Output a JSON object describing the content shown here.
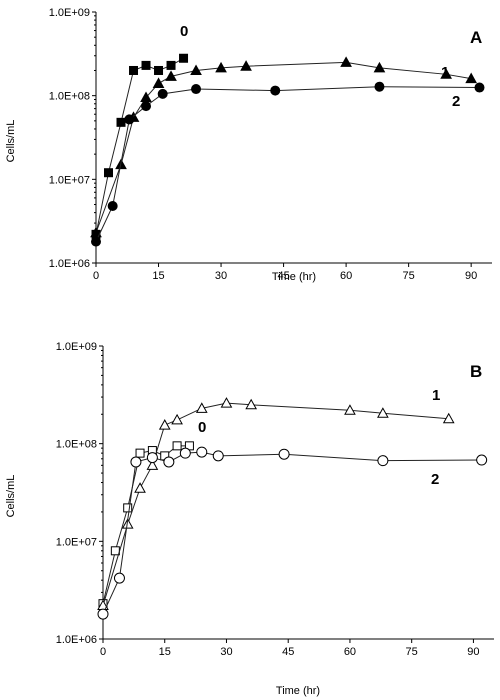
{
  "chart_data": [
    {
      "type": "line",
      "panel_label": "A",
      "xlabel": "Time (hr)",
      "ylabel": "Cells/mL",
      "y_scale": "log",
      "xlim": [
        0,
        95
      ],
      "ylim": [
        1000000,
        1000000000
      ],
      "x_ticks": [
        0,
        15,
        30,
        45,
        60,
        75,
        90
      ],
      "y_ticks": [
        1000000,
        10000000,
        100000000,
        1000000000
      ],
      "y_tick_labels": [
        "1.0E+06",
        "1.0E+07",
        "1.0E+08",
        "1.0E+09"
      ],
      "grid": false,
      "series": [
        {
          "name": "0",
          "marker": "square",
          "filled": true,
          "x": [
            0,
            3,
            6,
            9,
            12,
            15,
            18,
            21
          ],
          "y": [
            2200000,
            12000000,
            48000000,
            200000000,
            230000000,
            200000000,
            230000000,
            280000000
          ]
        },
        {
          "name": "1",
          "marker": "triangle",
          "filled": true,
          "x": [
            0,
            6,
            9,
            12,
            15,
            18,
            24,
            30,
            36,
            60,
            68,
            84,
            90
          ],
          "y": [
            2300000,
            15000000,
            55000000,
            95000000,
            140000000,
            170000000,
            200000000,
            215000000,
            225000000,
            250000000,
            215000000,
            180000000,
            160000000
          ]
        },
        {
          "name": "2",
          "marker": "circle",
          "filled": true,
          "x": [
            0,
            4,
            8,
            12,
            16,
            24,
            43,
            68,
            92
          ],
          "y": [
            1800000,
            4800000,
            52000000,
            75000000,
            105000000,
            120000000,
            115000000,
            128000000,
            125000000
          ]
        }
      ]
    },
    {
      "type": "line",
      "panel_label": "B",
      "xlabel": "Time (hr)",
      "ylabel": "Cells/mL",
      "y_scale": "log",
      "xlim": [
        0,
        95
      ],
      "ylim": [
        1000000,
        1000000000
      ],
      "x_ticks": [
        0,
        15,
        30,
        45,
        60,
        75,
        90
      ],
      "y_ticks": [
        1000000,
        10000000,
        100000000,
        1000000000
      ],
      "y_tick_labels": [
        "1.0E+06",
        "1.0E+07",
        "1.0E+08",
        "1.0E+09"
      ],
      "grid": false,
      "series": [
        {
          "name": "0",
          "marker": "square",
          "filled": false,
          "x": [
            0,
            3,
            6,
            9,
            12,
            15,
            18,
            21
          ],
          "y": [
            2300000,
            8000000,
            22000000,
            80000000,
            85000000,
            75000000,
            95000000,
            95000000
          ]
        },
        {
          "name": "1",
          "marker": "triangle",
          "filled": false,
          "x": [
            0,
            6,
            9,
            12,
            15,
            18,
            24,
            30,
            36,
            60,
            68,
            84
          ],
          "y": [
            2200000,
            15000000,
            35000000,
            60000000,
            155000000,
            175000000,
            230000000,
            260000000,
            250000000,
            220000000,
            205000000,
            180000000
          ]
        },
        {
          "name": "2",
          "marker": "circle",
          "filled": false,
          "x": [
            0,
            4,
            8,
            12,
            16,
            20,
            24,
            28,
            44,
            68,
            92
          ],
          "y": [
            1800000,
            4200000,
            65000000,
            72000000,
            65000000,
            80000000,
            82000000,
            75000000,
            78000000,
            67000000,
            68000000
          ]
        }
      ]
    }
  ]
}
